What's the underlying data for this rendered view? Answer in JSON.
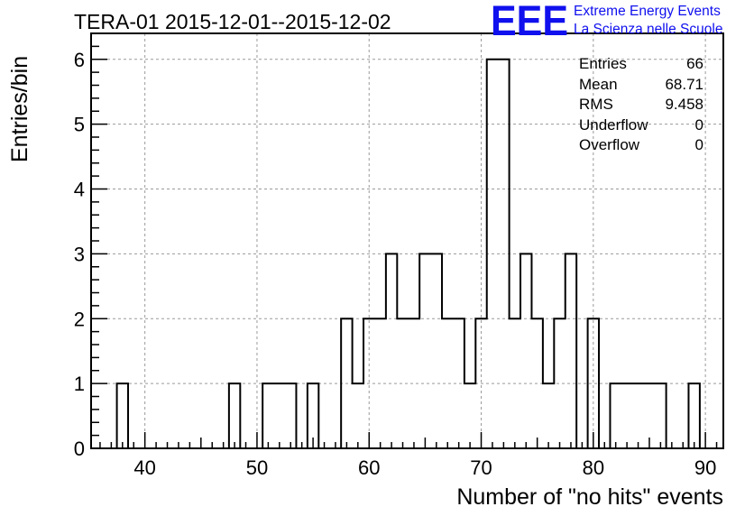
{
  "header": {
    "title": "TERA-01 2015-12-01--2015-12-02",
    "logo_letters": "EEE",
    "logo_line1": "Extreme Energy Events",
    "logo_line2": "La Scienza nelle Scuole"
  },
  "stats": [
    {
      "label": "Entries",
      "value": "66"
    },
    {
      "label": "Mean",
      "value": "68.71"
    },
    {
      "label": "RMS",
      "value": "9.458"
    },
    {
      "label": "Underflow",
      "value": "0"
    },
    {
      "label": "Overflow",
      "value": "0"
    }
  ],
  "colors": {
    "logo": "#1010ee",
    "line": "#000000",
    "grid": "#9a9a9a"
  },
  "chart_data": {
    "type": "bar",
    "histogram": true,
    "title": "TERA-01 2015-12-01--2015-12-02",
    "xlabel": "Number of \"no hits\" events",
    "ylabel": "Entries/bin",
    "xlim": [
      35.2,
      91.6
    ],
    "ylim": [
      0,
      6.4
    ],
    "bin_width": 1,
    "grid": true,
    "stats_box": "top-right",
    "xticks": [
      40,
      50,
      60,
      70,
      80,
      90
    ],
    "yticks": [
      0,
      1,
      2,
      3,
      4,
      5,
      6
    ],
    "bins": [
      {
        "x": 38,
        "y": 1
      },
      {
        "x": 48,
        "y": 1
      },
      {
        "x": 51,
        "y": 1
      },
      {
        "x": 52,
        "y": 1
      },
      {
        "x": 53,
        "y": 1
      },
      {
        "x": 55,
        "y": 1
      },
      {
        "x": 58,
        "y": 2
      },
      {
        "x": 59,
        "y": 1
      },
      {
        "x": 60,
        "y": 2
      },
      {
        "x": 61,
        "y": 2
      },
      {
        "x": 62,
        "y": 3
      },
      {
        "x": 63,
        "y": 2
      },
      {
        "x": 64,
        "y": 2
      },
      {
        "x": 65,
        "y": 3
      },
      {
        "x": 66,
        "y": 3
      },
      {
        "x": 67,
        "y": 2
      },
      {
        "x": 68,
        "y": 2
      },
      {
        "x": 69,
        "y": 1
      },
      {
        "x": 70,
        "y": 2
      },
      {
        "x": 71,
        "y": 6
      },
      {
        "x": 72,
        "y": 6
      },
      {
        "x": 73,
        "y": 2
      },
      {
        "x": 74,
        "y": 3
      },
      {
        "x": 75,
        "y": 2
      },
      {
        "x": 76,
        "y": 1
      },
      {
        "x": 77,
        "y": 2
      },
      {
        "x": 78,
        "y": 3
      },
      {
        "x": 80,
        "y": 2
      },
      {
        "x": 82,
        "y": 1
      },
      {
        "x": 83,
        "y": 1
      },
      {
        "x": 84,
        "y": 1
      },
      {
        "x": 85,
        "y": 1
      },
      {
        "x": 86,
        "y": 1
      },
      {
        "x": 89,
        "y": 1
      }
    ]
  }
}
